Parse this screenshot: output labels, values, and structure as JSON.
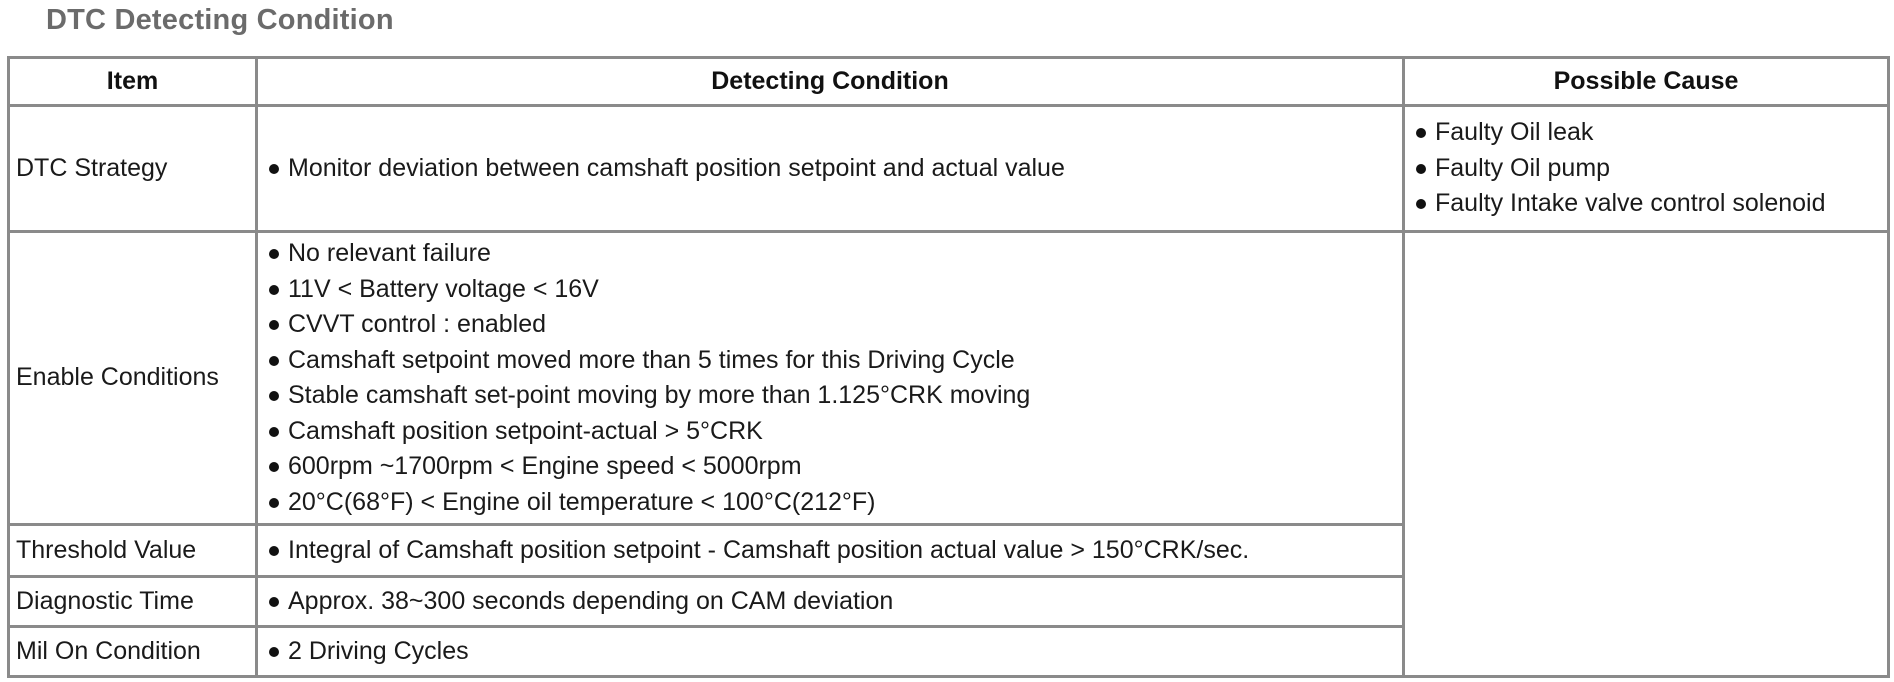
{
  "title": "DTC Detecting Condition",
  "table": {
    "headers": {
      "item": "Item",
      "condition": "Detecting Condition",
      "cause": "Possible Cause"
    },
    "rows": [
      {
        "item": "DTC Strategy",
        "conditions": [
          "Monitor deviation between camshaft position setpoint and actual value"
        ]
      },
      {
        "item": "Enable Conditions",
        "conditions": [
          "No relevant failure",
          "11V < Battery voltage < 16V",
          "CVVT control : enabled",
          "Camshaft setpoint moved more than 5 times for this Driving Cycle",
          "Stable camshaft set-point moving by more than 1.125°CRK moving",
          "Camshaft position setpoint-actual > 5°CRK",
          "600rpm ~1700rpm < Engine speed < 5000rpm",
          "20°C(68°F) < Engine oil temperature < 100°C(212°F)"
        ]
      },
      {
        "item": "Threshold Value",
        "conditions": [
          "Integral of Camshaft position setpoint - Camshaft position actual value > 150°CRK/sec."
        ]
      },
      {
        "item": "Diagnostic Time",
        "conditions": [
          "Approx. 38~300 seconds depending on CAM deviation"
        ]
      },
      {
        "item": "Mil On Condition",
        "conditions": [
          "2 Driving Cycles"
        ]
      }
    ],
    "possible_causes": [
      "Faulty Oil leak",
      "Faulty Oil pump",
      "Faulty Intake valve control solenoid"
    ]
  }
}
